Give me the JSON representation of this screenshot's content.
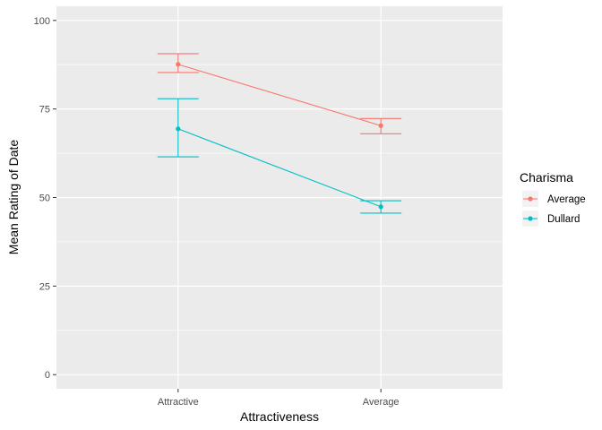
{
  "chart_data": {
    "type": "line",
    "xlabel": "Attractiveness",
    "ylabel": "Mean Rating of Date",
    "categories": [
      "Attractive",
      "Average"
    ],
    "ylim": [
      -4,
      104
    ],
    "yticks": [
      0,
      25,
      50,
      75,
      100
    ],
    "ytick_labels": [
      "0",
      "25",
      "50",
      "75",
      "100"
    ],
    "grid": true,
    "legend": {
      "title": "Charisma",
      "position": "right"
    },
    "series": [
      {
        "name": "Average",
        "color": "#F8766D",
        "values": [
          87.6,
          70.3
        ],
        "err_low": [
          85.3,
          68.0
        ],
        "err_high": [
          90.6,
          72.3
        ]
      },
      {
        "name": "Dullard",
        "color": "#00BFC4",
        "values": [
          69.4,
          47.4
        ],
        "err_low": [
          61.5,
          45.6
        ],
        "err_high": [
          77.9,
          49.1
        ]
      }
    ]
  }
}
